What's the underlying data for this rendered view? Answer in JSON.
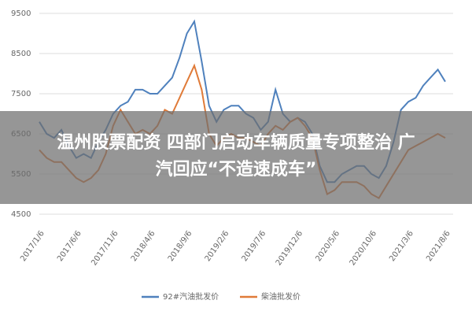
{
  "chart_data": {
    "type": "line",
    "categories": [
      "2017/1/6",
      null,
      null,
      null,
      null,
      "2017/6/6",
      null,
      null,
      null,
      null,
      "2017/11/6",
      null,
      null,
      null,
      null,
      "2018/4/6",
      null,
      null,
      null,
      null,
      "2018/9/6",
      null,
      null,
      null,
      null,
      "2019/2/6",
      null,
      null,
      null,
      null,
      "2019/7/6",
      null,
      null,
      null,
      null,
      "2019/12/6",
      null,
      null,
      null,
      null,
      "2020/5/6",
      null,
      null,
      null,
      null,
      "2020/10/6",
      null,
      null,
      null,
      null,
      "2021/3/6",
      null,
      null,
      null,
      null,
      "2021/8/6"
    ],
    "series": [
      {
        "name": "92#汽油批发价",
        "color": "#4f81bd",
        "values": [
          6800,
          6500,
          6400,
          6600,
          6200,
          5900,
          6000,
          5900,
          6300,
          6600,
          7000,
          7200,
          7300,
          7600,
          7600,
          7500,
          7500,
          7700,
          7900,
          8400,
          9000,
          9300,
          8300,
          7200,
          6800,
          7100,
          7200,
          7200,
          7000,
          6900,
          6600,
          6800,
          7600,
          7000,
          6800,
          6900,
          6800,
          6500,
          5700,
          5300,
          5300,
          5500,
          5600,
          5700,
          5700,
          5500,
          5400,
          5700,
          6300,
          7100,
          7300,
          7400,
          7700,
          7900,
          8100,
          7800
        ]
      },
      {
        "name": "柴油批发价",
        "color": "#e07b39",
        "values": [
          6100,
          5900,
          5800,
          5800,
          5600,
          5400,
          5300,
          5400,
          5600,
          6000,
          6700,
          7100,
          6800,
          6500,
          6600,
          6500,
          6700,
          7100,
          7000,
          7400,
          7800,
          8200,
          7600,
          6500,
          6200,
          6400,
          6500,
          6400,
          6400,
          6300,
          6200,
          6500,
          6700,
          6600,
          6800,
          6900,
          6700,
          6400,
          5600,
          5000,
          5100,
          5300,
          5300,
          5300,
          5200,
          5000,
          4900,
          5200,
          5500,
          5800,
          6100,
          6200,
          6300,
          6400,
          6500,
          6400
        ]
      }
    ],
    "ylim": [
      4500,
      9500
    ],
    "yticks": [
      4500,
      5500,
      6500,
      7500,
      8500,
      9500
    ],
    "grid": true
  },
  "overlay": {
    "lines": [
      "温州股票配资 四部门启动车辆质量专项整治 广",
      "汽回应“不造速成车”"
    ]
  }
}
